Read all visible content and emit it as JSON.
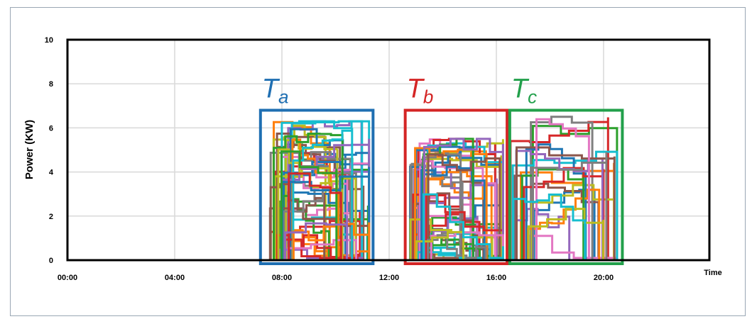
{
  "chart_data": {
    "type": "line",
    "title": "",
    "xlabel": "Time",
    "ylabel": "Power (KW)",
    "xlim": [
      "00:00",
      "23:00"
    ],
    "ylim": [
      0,
      10
    ],
    "x_ticks": [
      "00:00",
      "04:00",
      "08:00",
      "12:00",
      "16:00",
      "20:00"
    ],
    "y_ticks": [
      "0",
      "2",
      "4",
      "6",
      "8",
      "10"
    ],
    "grid": true,
    "legend": "none",
    "colors": [
      "#1f77b4",
      "#ff7f0e",
      "#2ca02c",
      "#d62728",
      "#9467bd",
      "#8c564b",
      "#e377c2",
      "#7f7f7f",
      "#bcbd22",
      "#17becf"
    ],
    "regions": [
      {
        "label_main": "T",
        "label_sub": "a",
        "color": "#1f6fb2",
        "x_range": [
          "07:12",
          "11:24"
        ],
        "y_max": 6.8
      },
      {
        "label_main": "T",
        "label_sub": "b",
        "color": "#d42525",
        "x_range": [
          "12:36",
          "16:24"
        ],
        "y_max": 6.8
      },
      {
        "label_main": "T",
        "label_sub": "c",
        "color": "#22a04b",
        "x_range": [
          "16:30",
          "20:42"
        ],
        "y_max": 6.8
      }
    ],
    "series_groups": [
      {
        "region": "Ta",
        "count": 45,
        "x_range": [
          "07:30",
          "11:15"
        ],
        "y_range": [
          0.2,
          6.3
        ]
      },
      {
        "region": "Tb",
        "count": 45,
        "x_range": [
          "12:45",
          "16:15"
        ],
        "y_range": [
          0.2,
          5.5
        ]
      },
      {
        "region": "Tc",
        "count": 20,
        "x_range": [
          "16:30",
          "20:30"
        ],
        "y_range": [
          0.5,
          6.6
        ]
      }
    ]
  }
}
